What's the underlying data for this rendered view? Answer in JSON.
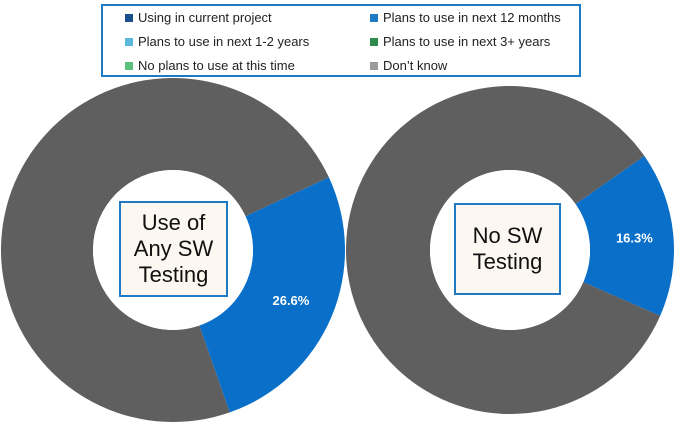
{
  "legend": {
    "items": [
      {
        "label": "Using in current project",
        "color": "#1a4f8b"
      },
      {
        "label": "Plans to use in next 12 months",
        "color": "#1f7ac4"
      },
      {
        "label": "Plans to use in next 1-2 years",
        "color": "#5bb8e0"
      },
      {
        "label": "Plans to use in next 3+ years",
        "color": "#2d8a4a"
      },
      {
        "label": "No plans to use at this time",
        "color": "#5cc07e"
      },
      {
        "label": "Don’t know",
        "color": "#9a9a9a"
      }
    ]
  },
  "chart_data": [
    {
      "type": "pie",
      "donut": true,
      "center_label": "Use of\nAny SW\nTesting",
      "slices": [
        {
          "series": "Plans to use in next 12 months",
          "value": 26.6,
          "label": "26.6%",
          "color": "#0a6fc9"
        },
        {
          "series": "Remaining",
          "value": 73.4,
          "label": "",
          "color": "#5f5f5f"
        }
      ]
    },
    {
      "type": "pie",
      "donut": true,
      "center_label": "No SW\nTesting",
      "slices": [
        {
          "series": "Plans to use in next 12 months",
          "value": 16.3,
          "label": "16.3%",
          "color": "#0a6fc9"
        },
        {
          "series": "Remaining",
          "value": 83.7,
          "label": "",
          "color": "#5f5f5f"
        }
      ]
    }
  ]
}
